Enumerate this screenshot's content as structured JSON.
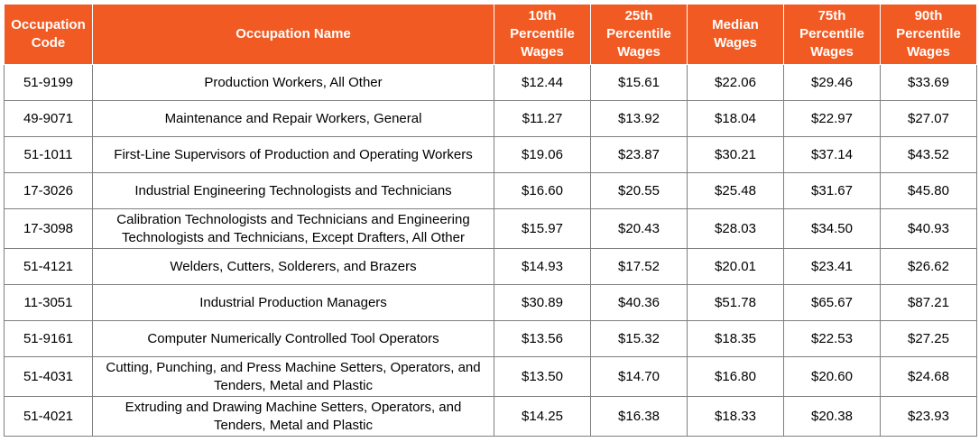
{
  "table": {
    "headers": {
      "code": [
        "Occupation",
        "Code"
      ],
      "name": [
        "Occupation Name"
      ],
      "p10": [
        "10th",
        "Percentile",
        "Wages"
      ],
      "p25": [
        "25th",
        "Percentile",
        "Wages"
      ],
      "median": [
        "Median",
        "Wages"
      ],
      "p75": [
        "75th",
        "Percentile",
        "Wages"
      ],
      "p90": [
        "90th",
        "Percentile",
        "Wages"
      ]
    },
    "rows": [
      {
        "code": "51-9199",
        "name": [
          "Production Workers, All Other"
        ],
        "p10": "$12.44",
        "p25": "$15.61",
        "median": "$22.06",
        "p75": "$29.46",
        "p90": "$33.69"
      },
      {
        "code": "49-9071",
        "name": [
          "Maintenance and Repair Workers, General"
        ],
        "p10": "$11.27",
        "p25": "$13.92",
        "median": "$18.04",
        "p75": "$22.97",
        "p90": "$27.07"
      },
      {
        "code": "51-1011",
        "name": [
          "First-Line Supervisors of Production and Operating Workers"
        ],
        "p10": "$19.06",
        "p25": "$23.87",
        "median": "$30.21",
        "p75": "$37.14",
        "p90": "$43.52"
      },
      {
        "code": "17-3026",
        "name": [
          "Industrial Engineering Technologists and Technicians"
        ],
        "p10": "$16.60",
        "p25": "$20.55",
        "median": "$25.48",
        "p75": "$31.67",
        "p90": "$45.80"
      },
      {
        "code": "17-3098",
        "name": [
          "Calibration Technologists and Technicians and Engineering",
          "Technologists and Technicians, Except Drafters, All Other"
        ],
        "p10": "$15.97",
        "p25": "$20.43",
        "median": "$28.03",
        "p75": "$34.50",
        "p90": "$40.93"
      },
      {
        "code": "51-4121",
        "name": [
          "Welders, Cutters, Solderers, and Brazers"
        ],
        "p10": "$14.93",
        "p25": "$17.52",
        "median": "$20.01",
        "p75": "$23.41",
        "p90": "$26.62"
      },
      {
        "code": "11-3051",
        "name": [
          "Industrial Production Managers"
        ],
        "p10": "$30.89",
        "p25": "$40.36",
        "median": "$51.78",
        "p75": "$65.67",
        "p90": "$87.21"
      },
      {
        "code": "51-9161",
        "name": [
          "Computer Numerically Controlled Tool Operators"
        ],
        "p10": "$13.56",
        "p25": "$15.32",
        "median": "$18.35",
        "p75": "$22.53",
        "p90": "$27.25"
      },
      {
        "code": "51-4031",
        "name": [
          "Cutting, Punching, and Press Machine Setters, Operators, and",
          "Tenders, Metal and Plastic"
        ],
        "p10": "$13.50",
        "p25": "$14.70",
        "median": "$16.80",
        "p75": "$20.60",
        "p90": "$24.68"
      },
      {
        "code": "51-4021",
        "name": [
          "Extruding and Drawing Machine Setters, Operators, and",
          "Tenders, Metal and Plastic"
        ],
        "p10": "$14.25",
        "p25": "$16.38",
        "median": "$18.33",
        "p75": "$20.38",
        "p90": "$23.93"
      }
    ]
  }
}
